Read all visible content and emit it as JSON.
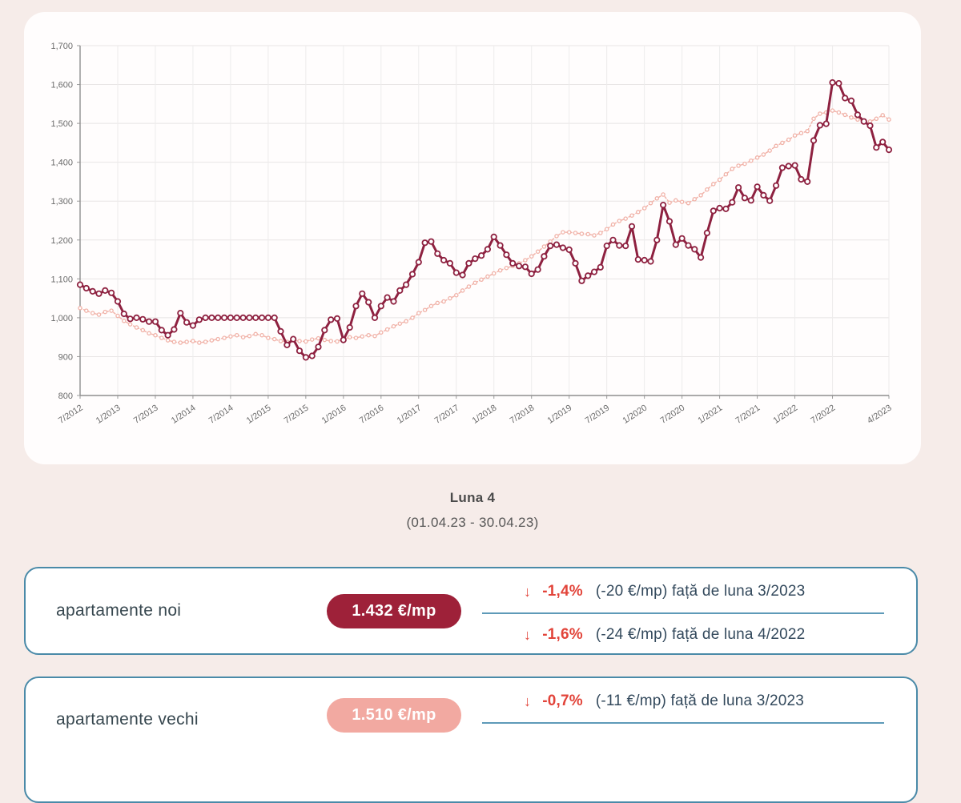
{
  "chart_data": {
    "type": "line",
    "title": "",
    "xlabel": "",
    "ylabel": "",
    "grid": true,
    "ylim": [
      800,
      1700
    ],
    "y_ticks": [
      800,
      900,
      1000,
      1100,
      1200,
      1300,
      1400,
      1500,
      1600,
      1700
    ],
    "y_tick_labels": [
      "800",
      "900",
      "1,000",
      "1,100",
      "1,200",
      "1,300",
      "1,400",
      "1,500",
      "1,600",
      "1,700"
    ],
    "x_tick_indices": [
      0,
      6,
      12,
      18,
      24,
      30,
      36,
      42,
      48,
      54,
      60,
      66,
      72,
      78,
      84,
      90,
      96,
      102,
      108,
      114,
      120,
      129
    ],
    "x_tick_labels": [
      "7/2012",
      "1/2013",
      "7/2013",
      "1/2014",
      "7/2014",
      "1/2015",
      "7/2015",
      "1/2016",
      "7/2016",
      "1/2017",
      "7/2017",
      "1/2018",
      "7/2018",
      "1/2019",
      "7/2019",
      "1/2020",
      "7/2020",
      "1/2021",
      "7/2021",
      "1/2022",
      "7/2022",
      "4/2023"
    ],
    "x_unit": "month",
    "x_range_months": "7/2012 - 4/2023",
    "series": [
      {
        "name": "apartamente noi",
        "color": "#8e2140",
        "line_width": 3,
        "marker_radius": 3.2,
        "marker_stroke": 1.8,
        "dash": "",
        "values": [
          1085,
          1076,
          1068,
          1062,
          1070,
          1064,
          1042,
          1010,
          997,
          1000,
          996,
          990,
          990,
          968,
          955,
          970,
          1012,
          988,
          980,
          995,
          1000,
          1000,
          1000,
          1000,
          1000,
          1000,
          1000,
          1000,
          1000,
          1000,
          1000,
          1000,
          965,
          930,
          945,
          915,
          898,
          902,
          925,
          968,
          995,
          998,
          943,
          975,
          1030,
          1062,
          1040,
          1000,
          1030,
          1052,
          1042,
          1070,
          1085,
          1112,
          1143,
          1193,
          1196,
          1165,
          1148,
          1140,
          1116,
          1110,
          1140,
          1152,
          1160,
          1176,
          1208,
          1186,
          1162,
          1140,
          1133,
          1131,
          1113,
          1124,
          1158,
          1185,
          1188,
          1180,
          1175,
          1140,
          1095,
          1108,
          1118,
          1130,
          1185,
          1200,
          1186,
          1185,
          1235,
          1150,
          1148,
          1145,
          1200,
          1290,
          1248,
          1188,
          1204,
          1186,
          1176,
          1155,
          1218,
          1275,
          1282,
          1280,
          1297,
          1335,
          1308,
          1302,
          1337,
          1315,
          1301,
          1340,
          1386,
          1390,
          1392,
          1356,
          1350,
          1456,
          1495,
          1499,
          1605,
          1603,
          1565,
          1558,
          1522,
          1505,
          1494,
          1438,
          1452,
          1432
        ]
      },
      {
        "name": "apartamente vechi",
        "color": "#f1b3a9",
        "line_width": 1.5,
        "marker_radius": 2.1,
        "marker_stroke": 1.3,
        "dash": "2.5 2.5",
        "values": [
          1025,
          1018,
          1012,
          1008,
          1015,
          1018,
          1005,
          992,
          983,
          975,
          968,
          960,
          955,
          948,
          942,
          938,
          936,
          938,
          940,
          936,
          938,
          942,
          945,
          948,
          952,
          955,
          950,
          953,
          958,
          955,
          948,
          945,
          940,
          938,
          942,
          940,
          939,
          944,
          947,
          943,
          940,
          939,
          945,
          950,
          948,
          952,
          955,
          953,
          962,
          970,
          978,
          985,
          991,
          1000,
          1012,
          1020,
          1030,
          1038,
          1042,
          1050,
          1058,
          1070,
          1080,
          1090,
          1098,
          1106,
          1114,
          1122,
          1128,
          1133,
          1140,
          1148,
          1158,
          1170,
          1183,
          1196,
          1210,
          1220,
          1220,
          1218,
          1216,
          1215,
          1212,
          1218,
          1228,
          1240,
          1249,
          1255,
          1263,
          1272,
          1282,
          1295,
          1307,
          1317,
          1296,
          1302,
          1298,
          1295,
          1305,
          1315,
          1330,
          1344,
          1355,
          1369,
          1383,
          1391,
          1396,
          1404,
          1412,
          1420,
          1430,
          1442,
          1450,
          1458,
          1469,
          1475,
          1480,
          1512,
          1525,
          1528,
          1533,
          1528,
          1522,
          1515,
          1510,
          1506,
          1505,
          1512,
          1521,
          1510
        ]
      }
    ]
  },
  "period": {
    "title": "Luna 4",
    "range": "(01.04.23 - 30.04.23)"
  },
  "cards": [
    {
      "label": "apartamente noi",
      "price": "1.432 €/mp",
      "badge_bg": "#9e2139",
      "badge_text_color": "#ffffff",
      "rows": [
        {
          "arrow": "↓",
          "pct": "-1,4%",
          "detail": "(-20 €/mp) față de luna 3/2023"
        },
        {
          "arrow": "↓",
          "pct": "-1,6%",
          "detail": "(-24 €/mp) față de luna 4/2022"
        }
      ]
    },
    {
      "label": "apartamente vechi",
      "price": "1.510 €/mp",
      "badge_bg": "#f2a9a1",
      "badge_text_color": "#ffffff",
      "rows": [
        {
          "arrow": "↓",
          "pct": "-0,7%",
          "detail": "(-11 €/mp) față de luna 3/2023"
        }
      ]
    }
  ],
  "colors": {
    "page_bg": "#f6ece9",
    "card_border": "#4a8aa8",
    "divider": "#5e9ab8",
    "negative": "#e2443a",
    "series_noi": "#8e2140",
    "series_vechi": "#f1b3a9"
  }
}
